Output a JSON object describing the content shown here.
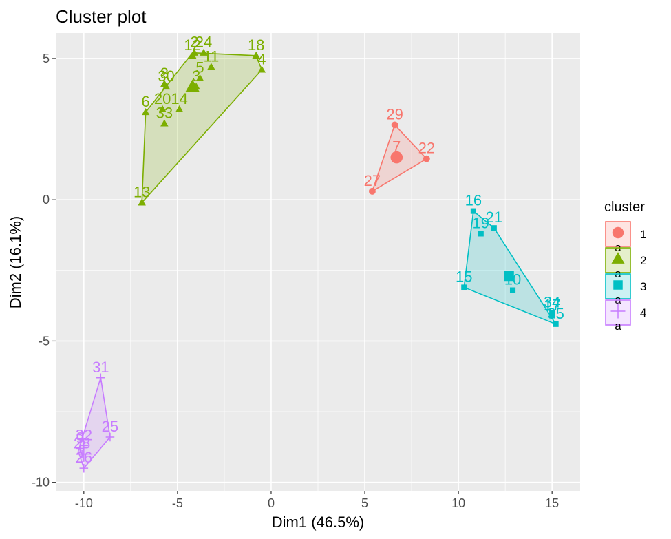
{
  "chart_data": {
    "type": "scatter",
    "title": "Cluster plot",
    "xlabel": "Dim1 (46.5%)",
    "ylabel": "Dim2 (16.1%)",
    "xlim": [
      -11.5,
      16.5
    ],
    "ylim": [
      -10.3,
      5.9
    ],
    "xticks": [
      -10,
      -5,
      0,
      5,
      10,
      15
    ],
    "yticks": [
      -10,
      -5,
      0,
      5
    ],
    "grid": true,
    "legend": {
      "title": "cluster",
      "placement": "right",
      "glyph_text": "a"
    },
    "series": [
      {
        "name": "1",
        "color": "#F8766D",
        "marker": "circle",
        "center": [
          6.7,
          1.5
        ],
        "hull": [
          [
            6.6,
            2.65
          ],
          [
            8.3,
            1.45
          ],
          [
            5.4,
            0.3
          ]
        ],
        "points": [
          {
            "label": "29",
            "x": 6.6,
            "y": 2.65
          },
          {
            "label": "22",
            "x": 8.3,
            "y": 1.45
          },
          {
            "label": "27",
            "x": 5.4,
            "y": 0.3
          },
          {
            "label": "7",
            "x": 6.7,
            "y": 1.5
          }
        ]
      },
      {
        "name": "2",
        "color": "#7CAE00",
        "marker": "triangle",
        "center": [
          -4.2,
          4.0
        ],
        "hull": [
          [
            -4.2,
            5.2
          ],
          [
            -0.8,
            5.1
          ],
          [
            -0.5,
            4.6
          ],
          [
            -6.9,
            -0.1
          ],
          [
            -6.7,
            3.1
          ]
        ],
        "points": [
          {
            "label": "2",
            "x": -4.1,
            "y": 5.2
          },
          {
            "label": "12",
            "x": -4.2,
            "y": 5.1
          },
          {
            "label": "24",
            "x": -3.6,
            "y": 5.2
          },
          {
            "label": "18",
            "x": -0.8,
            "y": 5.1
          },
          {
            "label": "4",
            "x": -0.5,
            "y": 4.6
          },
          {
            "label": "11",
            "x": -3.2,
            "y": 4.7
          },
          {
            "label": "5",
            "x": -3.8,
            "y": 4.3
          },
          {
            "label": "3",
            "x": -4.0,
            "y": 4.0
          },
          {
            "label": "8",
            "x": -5.7,
            "y": 4.1
          },
          {
            "label": "30",
            "x": -5.6,
            "y": 4.0
          },
          {
            "label": "6",
            "x": -6.7,
            "y": 3.1
          },
          {
            "label": "20",
            "x": -5.8,
            "y": 3.2
          },
          {
            "label": "14",
            "x": -4.9,
            "y": 3.2
          },
          {
            "label": "33",
            "x": -5.7,
            "y": 2.7
          },
          {
            "label": "13",
            "x": -6.9,
            "y": -0.1
          }
        ]
      },
      {
        "name": "3",
        "color": "#00BFC4",
        "marker": "square",
        "center": [
          12.7,
          -2.7
        ],
        "hull": [
          [
            10.8,
            -0.4
          ],
          [
            11.9,
            -1.0
          ],
          [
            15.2,
            -4.4
          ],
          [
            10.3,
            -3.1
          ]
        ],
        "points": [
          {
            "label": "16",
            "x": 10.8,
            "y": -0.4
          },
          {
            "label": "21",
            "x": 11.9,
            "y": -1.0
          },
          {
            "label": "19",
            "x": 11.2,
            "y": -1.2
          },
          {
            "label": "15",
            "x": 10.3,
            "y": -3.1
          },
          {
            "label": "10",
            "x": 12.9,
            "y": -3.2
          },
          {
            "label": "34",
            "x": 15.0,
            "y": -4.0
          },
          {
            "label": "17",
            "x": 15.0,
            "y": -4.1
          },
          {
            "label": "35",
            "x": 15.2,
            "y": -4.4
          }
        ]
      },
      {
        "name": "4",
        "color": "#C77CFF",
        "marker": "plus",
        "center": [
          -10.0,
          -9.0
        ],
        "hull": [
          [
            -9.1,
            -6.3
          ],
          [
            -8.6,
            -8.4
          ],
          [
            -10.0,
            -9.5
          ],
          [
            -10.3,
            -8.9
          ]
        ],
        "points": [
          {
            "label": "31",
            "x": -9.1,
            "y": -6.3
          },
          {
            "label": "25",
            "x": -8.6,
            "y": -8.4
          },
          {
            "label": "32",
            "x": -10.0,
            "y": -8.7
          },
          {
            "label": "9",
            "x": -10.2,
            "y": -8.8
          },
          {
            "label": "28",
            "x": -10.1,
            "y": -9.0
          },
          {
            "label": "26",
            "x": -10.0,
            "y": -9.5
          }
        ]
      }
    ]
  }
}
